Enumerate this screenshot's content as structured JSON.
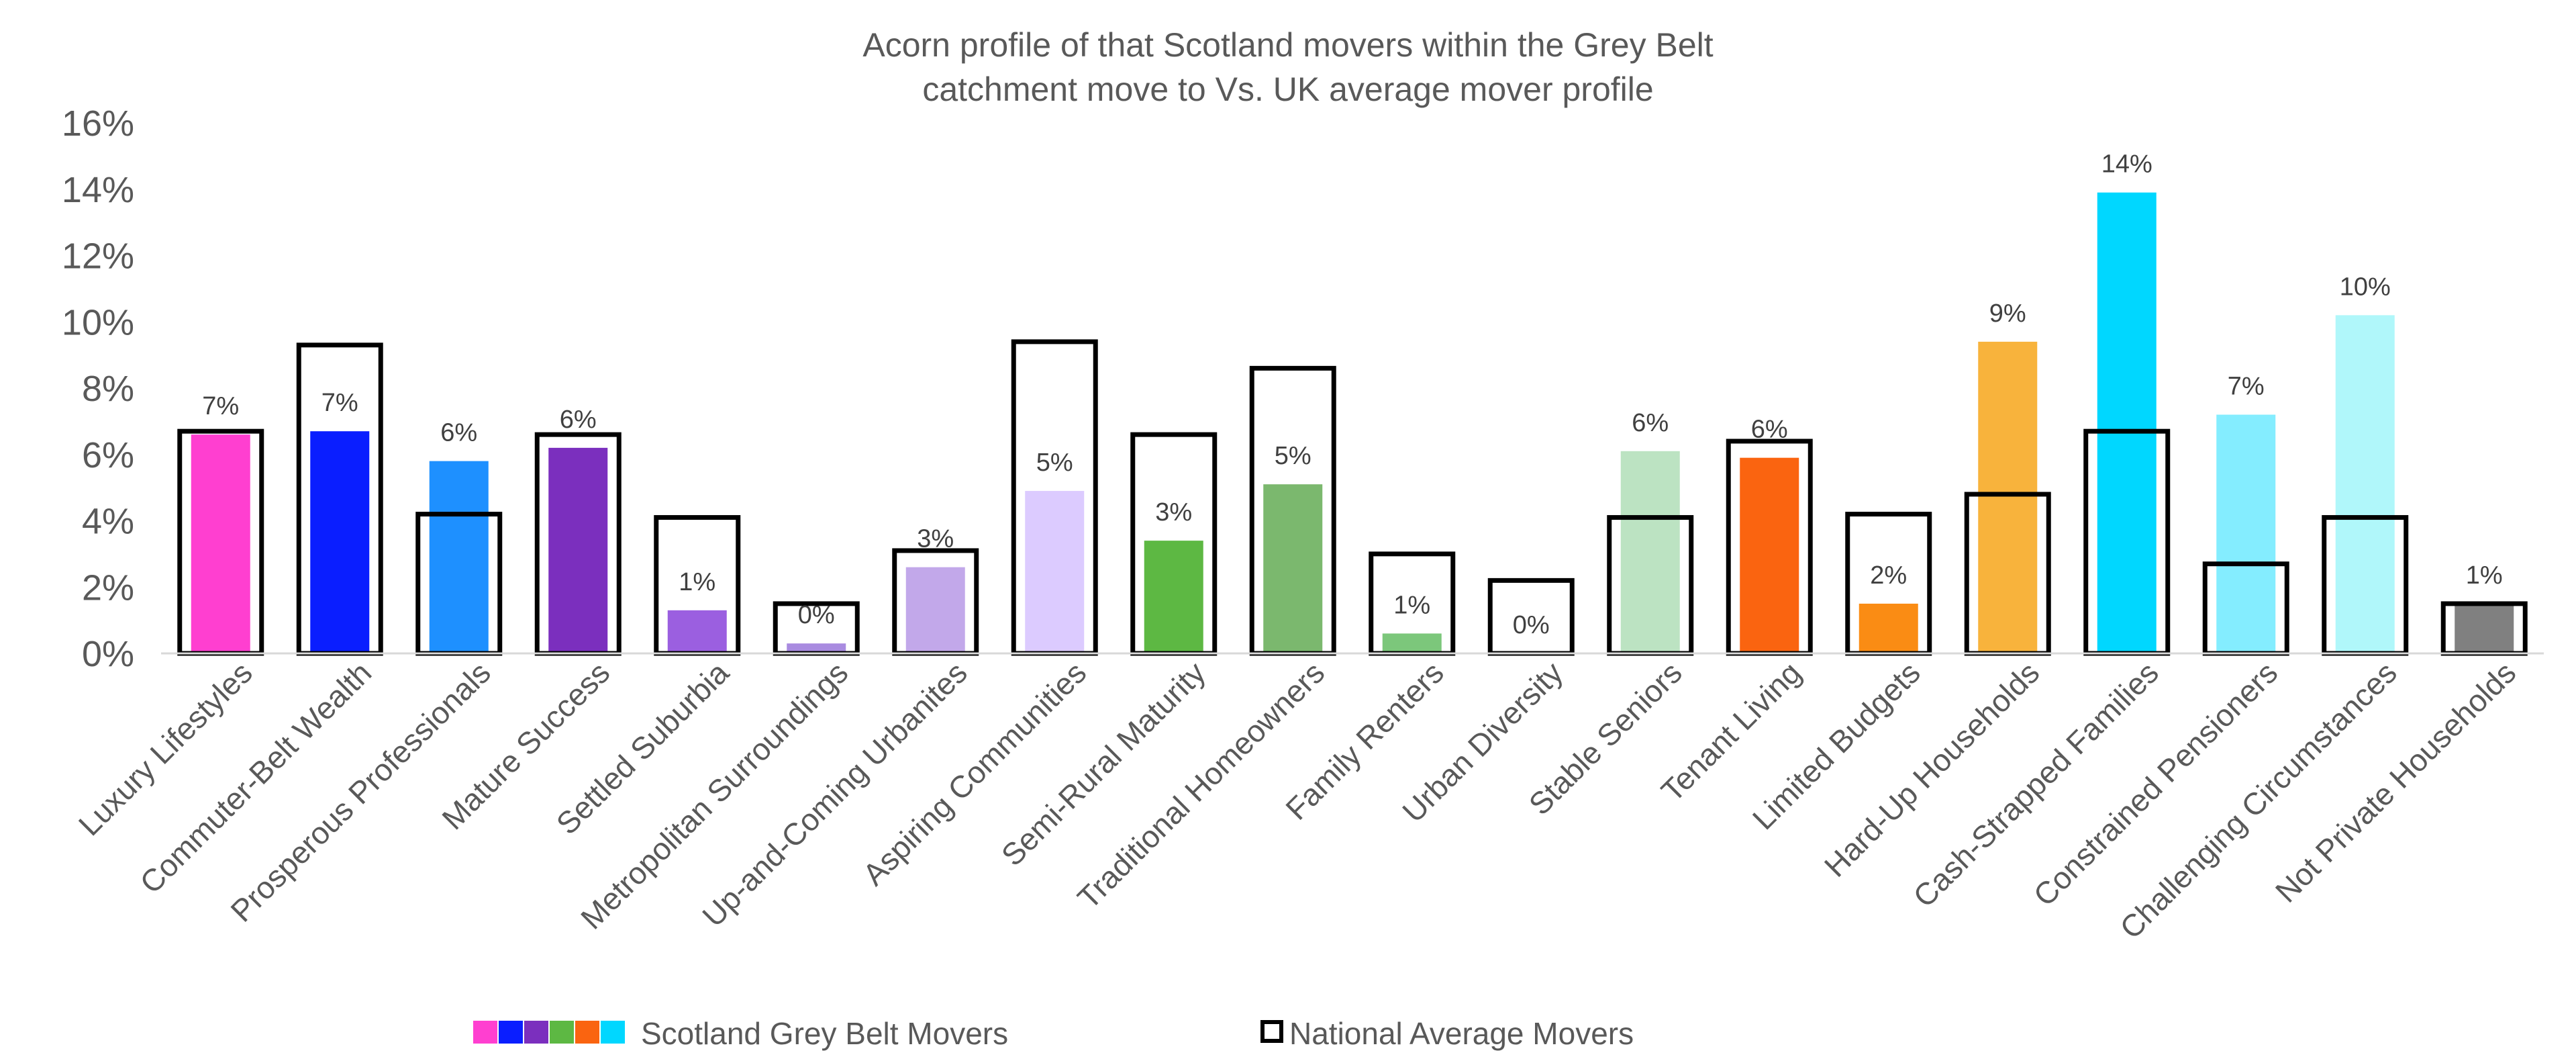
{
  "chart_data": {
    "type": "bar",
    "title_lines": [
      "Acorn profile of that Scotland movers within the Grey Belt",
      "catchment move to Vs. UK average mover profile"
    ],
    "xlabel": "",
    "ylabel": "",
    "ylim": [
      0,
      16
    ],
    "yticks": [
      "0%",
      "2%",
      "4%",
      "6%",
      "8%",
      "10%",
      "12%",
      "14%",
      "16%"
    ],
    "categories": [
      "Luxury Lifestyles",
      "Commuter-Belt Wealth",
      "Prosperous Professionals",
      "Mature Success",
      "Settled Suburbia",
      "Metropolitan Surroundings",
      "Up-and-Coming Urbanites",
      "Aspiring Communities",
      "Semi-Rural Maturity",
      "Traditional Homeowners",
      "Family Renters",
      "Urban Diversity",
      "Stable Seniors",
      "Tenant Living",
      "Limited Budgets",
      "Hard-Up Households",
      "Cash-Strapped Families",
      "Constrained Pensioners",
      "Challenging Circumstances",
      "Not Private Households"
    ],
    "series": [
      {
        "name": "Scotland Grey Belt Movers",
        "values": [
          6.6,
          6.7,
          5.8,
          6.2,
          1.3,
          0.3,
          2.6,
          4.9,
          3.4,
          5.1,
          0.6,
          0.0,
          6.1,
          5.9,
          1.5,
          9.4,
          13.9,
          7.2,
          10.2,
          1.5
        ],
        "data_labels": [
          "7%",
          "7%",
          "6%",
          "6%",
          "1%",
          "0%",
          "3%",
          "5%",
          "3%",
          "5%",
          "1%",
          "0%",
          "6%",
          "6%",
          "2%",
          "9%",
          "14%",
          "7%",
          "10%",
          "1%"
        ],
        "colors": [
          "#FF3FD0",
          "#0A1EFF",
          "#1E90FF",
          "#7B2FBE",
          "#9B5FE0",
          "#A98BE0",
          "#C2A8EA",
          "#DCCBFF",
          "#5DB843",
          "#7BB86E",
          "#7CC77B",
          "#9BD79A",
          "#BCE3C2",
          "#FA6410",
          "#FA8C14",
          "#F8B33C",
          "#00D7FF",
          "#84EDFF",
          "#B0F7FA",
          "#808080"
        ]
      },
      {
        "name": "National Average Movers",
        "values": [
          6.7,
          9.3,
          4.2,
          6.6,
          4.1,
          1.5,
          3.1,
          9.4,
          6.6,
          8.6,
          3.0,
          2.2,
          4.1,
          6.4,
          4.2,
          4.8,
          6.7,
          2.7,
          4.1,
          1.5
        ]
      }
    ],
    "legend": {
      "placement": "bottom",
      "swatch_colors": [
        "#FF3FD0",
        "#0A1EFF",
        "#7B2FBE",
        "#5DB843",
        "#FA6410",
        "#00D7FF"
      ]
    },
    "grid": false
  }
}
